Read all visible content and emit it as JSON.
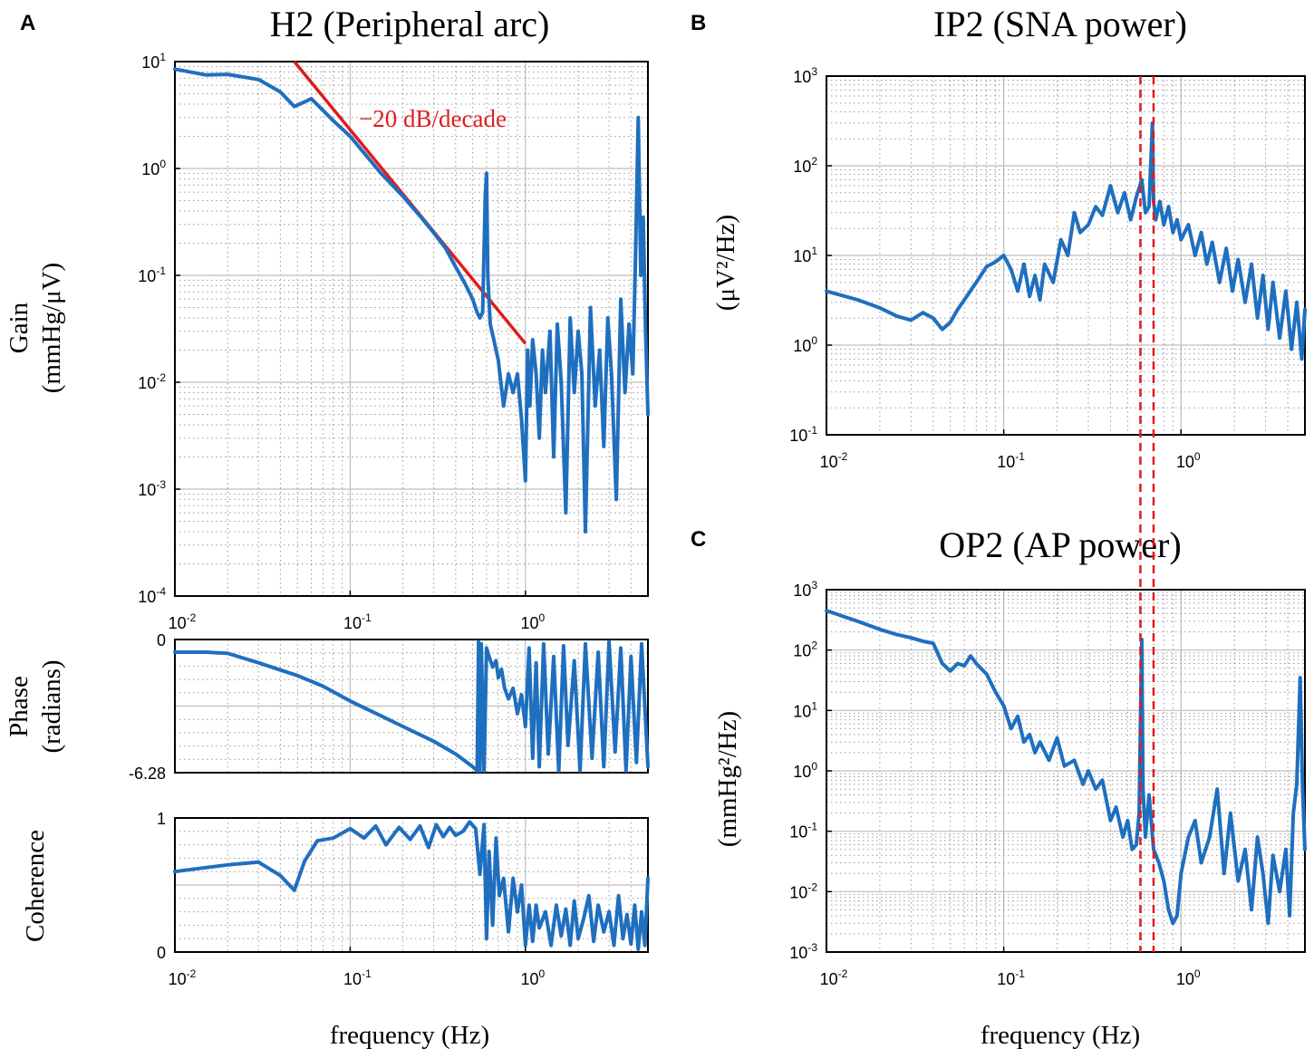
{
  "colors": {
    "series": "#1f6fbf",
    "reference": "#e01b1b",
    "marker": "#e01b1b"
  },
  "panel_letters": {
    "a": "A",
    "b": "B",
    "c": "C"
  },
  "chart_data": [
    {
      "id": "gain",
      "type": "line",
      "panel": "A",
      "title": "H2 (Peripheral arc)",
      "ylabel": [
        "Gain",
        "(mmHg/μV)"
      ],
      "xlabel": "",
      "xscale": "log",
      "yscale": "log",
      "xlim": [
        0.01,
        5
      ],
      "ylim": [
        0.0001,
        10
      ],
      "xticks": [
        {
          "b": "10",
          "e": "-2"
        },
        {
          "b": "10",
          "e": "-1"
        },
        {
          "b": "10",
          "e": "0"
        }
      ],
      "yticks": [
        {
          "v": 10,
          "b": "10",
          "e": "1"
        },
        {
          "v": 1,
          "b": "10",
          "e": "0"
        },
        {
          "v": 0.1,
          "b": "10",
          "e": "-1"
        },
        {
          "v": 0.01,
          "b": "10",
          "e": "-2"
        },
        {
          "v": 0.001,
          "b": "10",
          "e": "-3"
        },
        {
          "v": 0.0001,
          "b": "10",
          "e": "-4"
        }
      ],
      "annotation": {
        "text": "−20 dB/decade",
        "x": 0.085,
        "y": 4.0
      },
      "reference_line": {
        "x": [
          0.048,
          1.0
        ],
        "y": [
          10,
          0.023
        ]
      },
      "series": [
        {
          "name": "H2 gain",
          "x": [
            0.01,
            0.015,
            0.02,
            0.03,
            0.04,
            0.048,
            0.055,
            0.06,
            0.07,
            0.08,
            0.1,
            0.12,
            0.15,
            0.2,
            0.25,
            0.3,
            0.35,
            0.4,
            0.45,
            0.5,
            0.53,
            0.55,
            0.57,
            0.59,
            0.6,
            0.61,
            0.63,
            0.66,
            0.7,
            0.75,
            0.8,
            0.85,
            0.9,
            0.95,
            1.0,
            1.03,
            1.06,
            1.1,
            1.15,
            1.2,
            1.25,
            1.3,
            1.38,
            1.45,
            1.52,
            1.6,
            1.7,
            1.8,
            1.9,
            2.0,
            2.1,
            2.2,
            2.35,
            2.5,
            2.65,
            2.8,
            2.95,
            3.1,
            3.3,
            3.5,
            3.7,
            3.9,
            4.1,
            4.25,
            4.4,
            4.55,
            4.7,
            4.85,
            5.0
          ],
          "y": [
            8.5,
            7.5,
            7.6,
            6.8,
            5.2,
            3.8,
            4.2,
            4.5,
            3.5,
            2.8,
            2.0,
            1.4,
            0.9,
            0.55,
            0.36,
            0.25,
            0.18,
            0.12,
            0.085,
            0.06,
            0.045,
            0.04,
            0.045,
            0.55,
            0.9,
            0.1,
            0.035,
            0.025,
            0.016,
            0.006,
            0.012,
            0.008,
            0.012,
            0.0045,
            0.0012,
            0.02,
            0.006,
            0.025,
            0.012,
            0.003,
            0.02,
            0.008,
            0.03,
            0.002,
            0.035,
            0.01,
            0.0006,
            0.04,
            0.008,
            0.03,
            0.012,
            0.0004,
            0.05,
            0.006,
            0.02,
            0.0025,
            0.04,
            0.012,
            0.0008,
            0.06,
            0.008,
            0.035,
            0.012,
            0.15,
            3.0,
            0.1,
            0.35,
            0.03,
            0.005
          ]
        }
      ]
    },
    {
      "id": "phase",
      "type": "line",
      "panel": "A",
      "title": "",
      "ylabel": [
        "Phase",
        "(radians)"
      ],
      "xlabel": "",
      "xscale": "log",
      "yscale": "linear",
      "xlim": [
        0.01,
        5
      ],
      "ylim": [
        -6.28,
        0
      ],
      "xticks": [],
      "yticks": [
        {
          "v": 0,
          "label": "0"
        },
        {
          "v": -6.28,
          "label": "-6.28"
        }
      ],
      "series": [
        {
          "name": "H2 phase",
          "x": [
            0.01,
            0.015,
            0.02,
            0.03,
            0.05,
            0.07,
            0.1,
            0.15,
            0.2,
            0.3,
            0.4,
            0.5,
            0.53,
            0.54,
            0.55,
            0.56,
            0.58,
            0.6,
            0.62,
            0.65,
            0.68,
            0.7,
            0.73,
            0.76,
            0.8,
            0.85,
            0.9,
            0.95,
            1.0,
            1.05,
            1.1,
            1.15,
            1.2,
            1.27,
            1.35,
            1.45,
            1.55,
            1.65,
            1.75,
            1.9,
            2.05,
            2.2,
            2.4,
            2.6,
            2.8,
            3.0,
            3.25,
            3.5,
            3.75,
            4.0,
            4.3,
            4.6,
            5.0
          ],
          "y": [
            -0.6,
            -0.6,
            -0.65,
            -1.1,
            -1.7,
            -2.2,
            -2.9,
            -3.6,
            -4.1,
            -4.8,
            -5.4,
            -6.0,
            -6.2,
            -0.1,
            -6.2,
            -0.2,
            -6.2,
            -0.4,
            -0.8,
            -1.3,
            -1.0,
            -1.8,
            -1.4,
            -2.3,
            -2.8,
            -2.3,
            -3.5,
            -2.6,
            -4.1,
            -0.4,
            -5.6,
            -1.1,
            -6.0,
            -0.2,
            -5.4,
            -0.8,
            -6.2,
            -0.3,
            -5.0,
            -1.0,
            -6.2,
            -0.2,
            -5.6,
            -0.6,
            -6.0,
            -0.1,
            -5.3,
            -0.4,
            -6.2,
            -0.8,
            -5.8,
            -0.2,
            -6.0
          ]
        }
      ]
    },
    {
      "id": "coherence",
      "type": "line",
      "panel": "A",
      "title": "",
      "ylabel": [
        "Coherence"
      ],
      "xlabel": "frequency (Hz)",
      "xscale": "log",
      "yscale": "linear",
      "xlim": [
        0.01,
        5
      ],
      "ylim": [
        0,
        1
      ],
      "xticks": [
        {
          "b": "10",
          "e": "-2"
        },
        {
          "b": "10",
          "e": "-1"
        },
        {
          "b": "10",
          "e": "0"
        }
      ],
      "yticks": [
        {
          "v": 1,
          "label": "1"
        },
        {
          "v": 0,
          "label": "0"
        }
      ],
      "series": [
        {
          "name": "Coherence",
          "x": [
            0.01,
            0.015,
            0.02,
            0.03,
            0.04,
            0.048,
            0.055,
            0.065,
            0.08,
            0.1,
            0.12,
            0.14,
            0.16,
            0.19,
            0.22,
            0.25,
            0.28,
            0.31,
            0.34,
            0.37,
            0.4,
            0.44,
            0.48,
            0.52,
            0.55,
            0.58,
            0.6,
            0.62,
            0.65,
            0.68,
            0.71,
            0.75,
            0.8,
            0.85,
            0.9,
            0.95,
            1.0,
            1.05,
            1.1,
            1.15,
            1.2,
            1.3,
            1.4,
            1.5,
            1.6,
            1.7,
            1.8,
            1.9,
            2.0,
            2.15,
            2.3,
            2.45,
            2.6,
            2.8,
            3.0,
            3.2,
            3.4,
            3.6,
            3.8,
            4.0,
            4.2,
            4.4,
            4.6,
            4.8,
            5.0
          ],
          "y": [
            0.6,
            0.63,
            0.65,
            0.67,
            0.57,
            0.46,
            0.68,
            0.83,
            0.85,
            0.92,
            0.85,
            0.94,
            0.8,
            0.93,
            0.84,
            0.94,
            0.78,
            0.95,
            0.86,
            0.93,
            0.87,
            0.9,
            0.97,
            0.92,
            0.58,
            0.95,
            0.1,
            0.75,
            0.2,
            0.85,
            0.42,
            0.55,
            0.15,
            0.55,
            0.3,
            0.5,
            0.05,
            0.35,
            0.08,
            0.35,
            0.18,
            0.3,
            0.05,
            0.35,
            0.12,
            0.32,
            0.05,
            0.38,
            0.1,
            0.25,
            0.42,
            0.08,
            0.35,
            0.15,
            0.3,
            0.05,
            0.42,
            0.1,
            0.28,
            0.06,
            0.35,
            0.02,
            0.3,
            0.05,
            0.55
          ]
        }
      ]
    },
    {
      "id": "ip2",
      "type": "line",
      "panel": "B",
      "title": "IP2 (SNA power)",
      "ylabel": [
        "(μV²/Hz)"
      ],
      "xlabel": "",
      "xscale": "log",
      "yscale": "log",
      "xlim": [
        0.01,
        5
      ],
      "ylim": [
        0.1,
        1000
      ],
      "xticks": [
        {
          "b": "10",
          "e": "-2"
        },
        {
          "b": "10",
          "e": "-1"
        },
        {
          "b": "10",
          "e": "0"
        }
      ],
      "yticks": [
        {
          "v": 1000,
          "b": "10",
          "e": "3"
        },
        {
          "v": 100,
          "b": "10",
          "e": "2"
        },
        {
          "v": 10,
          "b": "10",
          "e": "1"
        },
        {
          "v": 1,
          "b": "10",
          "e": "0"
        },
        {
          "v": 0.1,
          "b": "10",
          "e": "-1"
        }
      ],
      "markers_x": [
        0.59,
        0.7
      ],
      "series": [
        {
          "name": "IP2",
          "x": [
            0.01,
            0.015,
            0.02,
            0.025,
            0.03,
            0.035,
            0.04,
            0.045,
            0.05,
            0.055,
            0.06,
            0.07,
            0.08,
            0.09,
            0.1,
            0.11,
            0.12,
            0.13,
            0.14,
            0.15,
            0.16,
            0.17,
            0.19,
            0.21,
            0.23,
            0.25,
            0.27,
            0.3,
            0.33,
            0.36,
            0.4,
            0.44,
            0.48,
            0.52,
            0.56,
            0.6,
            0.63,
            0.66,
            0.69,
            0.7,
            0.72,
            0.76,
            0.8,
            0.85,
            0.9,
            0.95,
            1.0,
            1.1,
            1.2,
            1.3,
            1.4,
            1.5,
            1.65,
            1.8,
            1.95,
            2.1,
            2.3,
            2.5,
            2.7,
            2.9,
            3.1,
            3.3,
            3.6,
            3.9,
            4.2,
            4.5,
            4.8,
            5.0
          ],
          "y": [
            4.0,
            3.2,
            2.6,
            2.1,
            1.9,
            2.3,
            2.0,
            1.5,
            1.8,
            2.5,
            3.2,
            5.0,
            7.5,
            8.5,
            10,
            7,
            4,
            8,
            3.5,
            6,
            3.2,
            8,
            5,
            15,
            10,
            30,
            18,
            22,
            35,
            28,
            60,
            30,
            50,
            25,
            45,
            70,
            30,
            35,
            300,
            40,
            25,
            40,
            22,
            35,
            18,
            25,
            15,
            22,
            10,
            18,
            8,
            14,
            5,
            12,
            4,
            9,
            3,
            8,
            2,
            6,
            1.5,
            5,
            1.2,
            4,
            0.9,
            3,
            0.7,
            2.5
          ]
        }
      ]
    },
    {
      "id": "op2",
      "type": "line",
      "panel": "C",
      "title": "OP2 (AP power)",
      "ylabel": [
        "(mmHg²/Hz)"
      ],
      "xlabel": "frequency (Hz)",
      "xscale": "log",
      "yscale": "log",
      "xlim": [
        0.01,
        5
      ],
      "ylim": [
        0.001,
        1000
      ],
      "xticks": [
        {
          "b": "10",
          "e": "-2"
        },
        {
          "b": "10",
          "e": "-1"
        },
        {
          "b": "10",
          "e": "0"
        }
      ],
      "yticks": [
        {
          "v": 1000,
          "b": "10",
          "e": "3"
        },
        {
          "v": 100,
          "b": "10",
          "e": "2"
        },
        {
          "v": 10,
          "b": "10",
          "e": "1"
        },
        {
          "v": 1,
          "b": "10",
          "e": "0"
        },
        {
          "v": 0.1,
          "b": "10",
          "e": "-1"
        },
        {
          "v": 0.01,
          "b": "10",
          "e": "-2"
        },
        {
          "v": 0.001,
          "b": "10",
          "e": "-3"
        }
      ],
      "markers_x": [
        0.59,
        0.7
      ],
      "series": [
        {
          "name": "OP2",
          "x": [
            0.01,
            0.015,
            0.02,
            0.025,
            0.03,
            0.035,
            0.04,
            0.045,
            0.05,
            0.055,
            0.06,
            0.065,
            0.07,
            0.08,
            0.09,
            0.1,
            0.11,
            0.12,
            0.13,
            0.14,
            0.15,
            0.16,
            0.18,
            0.2,
            0.22,
            0.25,
            0.28,
            0.3,
            0.33,
            0.36,
            0.4,
            0.43,
            0.47,
            0.5,
            0.53,
            0.56,
            0.58,
            0.6,
            0.61,
            0.63,
            0.66,
            0.7,
            0.75,
            0.8,
            0.85,
            0.9,
            0.95,
            1.0,
            1.1,
            1.2,
            1.3,
            1.45,
            1.6,
            1.75,
            1.9,
            2.1,
            2.3,
            2.5,
            2.7,
            2.9,
            3.1,
            3.3,
            3.6,
            3.9,
            4.1,
            4.3,
            4.5,
            4.7,
            4.85,
            5.0
          ],
          "y": [
            450,
            300,
            220,
            180,
            160,
            140,
            130,
            60,
            45,
            60,
            55,
            80,
            60,
            40,
            20,
            12,
            5,
            8,
            3,
            4,
            2,
            3,
            1.5,
            3.5,
            1.2,
            1.5,
            0.6,
            1.0,
            0.5,
            0.7,
            0.15,
            0.25,
            0.08,
            0.15,
            0.05,
            0.06,
            0.2,
            150,
            0.5,
            0.08,
            0.4,
            0.05,
            0.03,
            0.015,
            0.005,
            0.003,
            0.004,
            0.02,
            0.08,
            0.15,
            0.03,
            0.08,
            0.5,
            0.02,
            0.2,
            0.015,
            0.05,
            0.005,
            0.08,
            0.02,
            0.003,
            0.04,
            0.01,
            0.05,
            0.004,
            0.2,
            0.6,
            35,
            0.5,
            0.05
          ]
        }
      ]
    }
  ]
}
